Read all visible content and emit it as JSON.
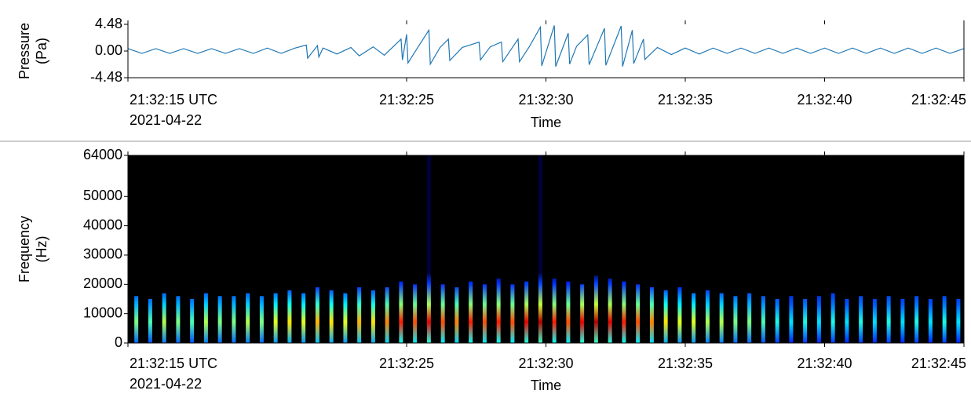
{
  "chart_data": [
    {
      "type": "line",
      "ylabel": [
        "Pressure",
        "(Pa)"
      ],
      "xlabel": "Time",
      "xdate": "2021-04-22",
      "xlim": [
        "21:32:15",
        "21:32:45"
      ],
      "xticks": [
        {
          "value": "21:32:15",
          "label": "21:32:15 UTC"
        },
        "21:32:25",
        "21:32:30",
        "21:32:35",
        "21:32:40",
        "21:32:45"
      ],
      "ylim": [
        -4.48,
        4.48
      ],
      "yticks": [
        -4.48,
        {
          "value": 0,
          "label": "0.00"
        },
        4.48
      ],
      "x": [
        "21:32:15.0",
        "21:32:15.5",
        "21:32:16.0",
        "21:32:16.5",
        "21:32:17.0",
        "21:32:17.5",
        "21:32:18.0",
        "21:32:18.5",
        "21:32:19.0",
        "21:32:19.5",
        "21:32:20.0",
        "21:32:20.5",
        "21:32:21.0",
        "21:32:21.4",
        "21:32:21.45",
        "21:32:21.8",
        "21:32:21.85",
        "21:32:22.0",
        "21:32:22.5",
        "21:32:23.0",
        "21:32:23.3",
        "21:32:23.8",
        "21:32:24.2",
        "21:32:24.8",
        "21:32:24.85",
        "21:32:25.0",
        "21:32:25.05",
        "21:32:25.4",
        "21:32:25.8",
        "21:32:25.85",
        "21:32:26.2",
        "21:32:26.5",
        "21:32:26.55",
        "21:32:27.0",
        "21:32:27.6",
        "21:32:27.65",
        "21:32:28.0",
        "21:32:28.4",
        "21:32:28.45",
        "21:32:29.0",
        "21:32:29.05",
        "21:32:29.4",
        "21:32:29.8",
        "21:32:29.85",
        "21:32:30.3",
        "21:32:30.35",
        "21:32:30.8",
        "21:32:30.85",
        "21:32:31.1",
        "21:32:31.5",
        "21:32:31.55",
        "21:32:32.1",
        "21:32:32.15",
        "21:32:32.7",
        "21:32:32.75",
        "21:32:33.1",
        "21:32:33.15",
        "21:32:33.5",
        "21:32:33.55",
        "21:32:34.0",
        "21:32:34.5",
        "21:32:35.0",
        "21:32:35.5",
        "21:32:36.0",
        "21:32:36.5",
        "21:32:37.0",
        "21:32:37.5",
        "21:32:38.0",
        "21:32:38.5",
        "21:32:39.0",
        "21:32:39.5",
        "21:32:40.0",
        "21:32:40.5",
        "21:32:41.0",
        "21:32:41.5",
        "21:32:42.0",
        "21:32:42.5",
        "21:32:43.0",
        "21:32:43.5",
        "21:32:44.0",
        "21:32:44.5",
        "21:32:45.0"
      ],
      "series": [
        {
          "color": "#1f77b4",
          "values": [
            0.4,
            -0.4,
            0.4,
            -0.4,
            0.4,
            -0.4,
            0.4,
            -0.4,
            0.4,
            -0.4,
            0.5,
            -0.4,
            0.5,
            1.0,
            -1.2,
            0.9,
            -1.0,
            0.5,
            -0.5,
            0.6,
            -0.8,
            0.7,
            -0.7,
            2.0,
            -1.5,
            2.8,
            -2.0,
            0.6,
            3.5,
            -2.2,
            0.6,
            2.0,
            -1.6,
            0.6,
            1.5,
            -1.5,
            0.7,
            1.5,
            -1.8,
            2.0,
            -1.8,
            0.7,
            4.0,
            -2.5,
            4.3,
            -2.6,
            3.0,
            -2.2,
            0.8,
            2.7,
            -2.3,
            3.8,
            -2.4,
            4.2,
            -2.6,
            3.5,
            -2.1,
            2.0,
            -1.4,
            0.6,
            -0.6,
            0.5,
            -0.5,
            0.5,
            -0.4,
            0.5,
            -0.4,
            0.5,
            -0.4,
            0.5,
            -0.4,
            0.5,
            -0.4,
            0.5,
            -0.4,
            0.5,
            -0.4,
            0.5,
            -0.4,
            0.5,
            -0.4,
            0.4
          ]
        }
      ]
    },
    {
      "type": "spectrogram",
      "ylabel": [
        "Frequency",
        "(Hz)"
      ],
      "xlabel": "Time",
      "xdate": "2021-04-22",
      "xlim": [
        "21:32:15",
        "21:32:45"
      ],
      "xticks": [
        {
          "value": "21:32:15",
          "label": "21:32:15 UTC"
        },
        "21:32:25",
        "21:32:30",
        "21:32:35",
        "21:32:40",
        "21:32:45"
      ],
      "ylim": [
        0,
        64000
      ],
      "yticks": [
        0,
        10000,
        20000,
        30000,
        40000,
        50000,
        64000
      ],
      "x": [
        "21:32:15.3",
        "21:32:15.8",
        "21:32:16.3",
        "21:32:16.8",
        "21:32:17.3",
        "21:32:17.8",
        "21:32:18.3",
        "21:32:18.8",
        "21:32:19.3",
        "21:32:19.8",
        "21:32:20.3",
        "21:32:20.8",
        "21:32:21.3",
        "21:32:21.8",
        "21:32:22.3",
        "21:32:22.8",
        "21:32:23.3",
        "21:32:23.8",
        "21:32:24.3",
        "21:32:24.8",
        "21:32:25.3",
        "21:32:25.8",
        "21:32:26.3",
        "21:32:26.8",
        "21:32:27.3",
        "21:32:27.8",
        "21:32:28.3",
        "21:32:28.8",
        "21:32:29.3",
        "21:32:29.8",
        "21:32:30.3",
        "21:32:30.8",
        "21:32:31.3",
        "21:32:31.8",
        "21:32:32.3",
        "21:32:32.8",
        "21:32:33.3",
        "21:32:33.8",
        "21:32:34.3",
        "21:32:34.8",
        "21:32:35.3",
        "21:32:35.8",
        "21:32:36.3",
        "21:32:36.8",
        "21:32:37.3",
        "21:32:37.8",
        "21:32:38.3",
        "21:32:38.8",
        "21:32:39.3",
        "21:32:39.8",
        "21:32:40.3",
        "21:32:40.8",
        "21:32:41.3",
        "21:32:41.8",
        "21:32:42.3",
        "21:32:42.8",
        "21:32:43.3",
        "21:32:43.8",
        "21:32:44.3",
        "21:32:44.8"
      ],
      "fmax": [
        16000,
        15000,
        17000,
        16000,
        15000,
        17000,
        16000,
        16000,
        17000,
        16000,
        17000,
        18000,
        17000,
        19000,
        18000,
        17000,
        19000,
        18000,
        19000,
        21000,
        20000,
        64000,
        20000,
        19000,
        21000,
        20000,
        22000,
        20000,
        21000,
        64000,
        22000,
        21000,
        20000,
        23000,
        22000,
        21000,
        20000,
        19000,
        18000,
        19000,
        17000,
        18000,
        17000,
        16000,
        17000,
        16000,
        15000,
        16000,
        15000,
        16000,
        17000,
        15000,
        16000,
        15000,
        16000,
        15000,
        16000,
        15000,
        16000,
        15000
      ],
      "intensity": [
        0.5,
        0.45,
        0.55,
        0.5,
        0.45,
        0.55,
        0.5,
        0.5,
        0.55,
        0.5,
        0.6,
        0.65,
        0.6,
        0.7,
        0.65,
        0.6,
        0.7,
        0.65,
        0.75,
        0.85,
        0.8,
        0.9,
        0.8,
        0.75,
        0.85,
        0.8,
        0.85,
        0.8,
        0.9,
        0.95,
        0.85,
        0.8,
        0.9,
        0.95,
        0.9,
        0.85,
        0.8,
        0.75,
        0.65,
        0.6,
        0.6,
        0.55,
        0.55,
        0.5,
        0.5,
        0.45,
        0.4,
        0.35,
        0.4,
        0.35,
        0.4,
        0.35,
        0.4,
        0.35,
        0.4,
        0.35,
        0.4,
        0.35,
        0.4,
        0.35
      ]
    }
  ]
}
